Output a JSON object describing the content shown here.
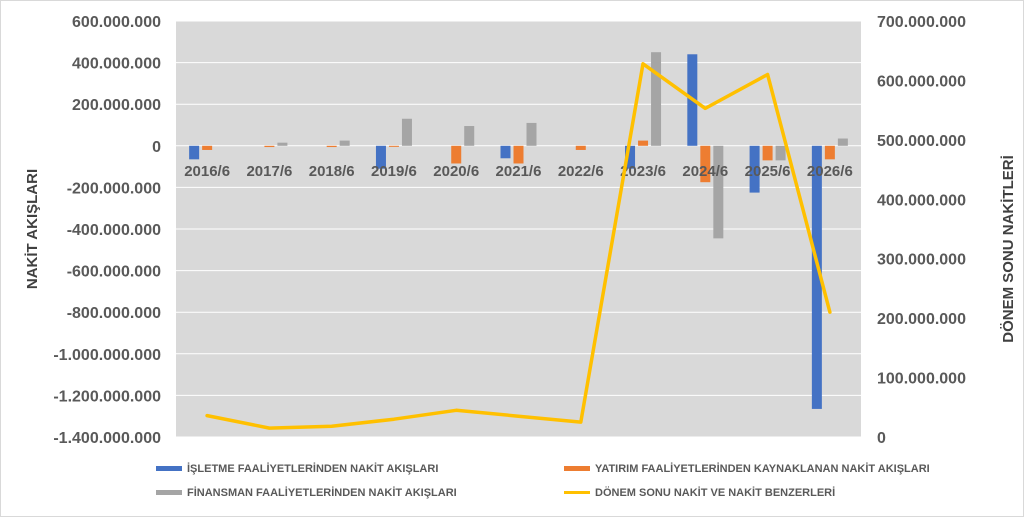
{
  "chart_data": {
    "type": "bar",
    "categories": [
      "2016/6",
      "2017/6",
      "2018/6",
      "2019/6",
      "2020/6",
      "2021/6",
      "2022/6",
      "2023/6",
      "2024/6",
      "2025/6",
      "2026/6"
    ],
    "y_left": {
      "label": "NAKİT AKIŞLARI",
      "range": [
        -1400000000,
        600000000
      ],
      "ticks": [
        600000000,
        400000000,
        200000000,
        0,
        -200000000,
        -400000000,
        -600000000,
        -800000000,
        -1000000000,
        -1200000000,
        -1400000000
      ],
      "tick_labels": [
        "600.000.000",
        "400.000.000",
        "200.000.000",
        "0",
        "-200.000.000",
        "-400.000.000",
        "-600.000.000",
        "-800.000.000",
        "-1.000.000.000",
        "-1.200.000.000",
        "-1.400.000.000"
      ]
    },
    "y_right": {
      "label": "DÖNEM SONU NAKİTLERİ",
      "range": [
        0,
        700000000
      ],
      "ticks": [
        700000000,
        600000000,
        500000000,
        400000000,
        300000000,
        200000000,
        100000000,
        0
      ],
      "tick_labels": [
        "700.000.000",
        "600.000.000",
        "500.000.000",
        "400.000.000",
        "300.000.000",
        "200.000.000",
        "100.000.000",
        "0"
      ]
    },
    "series": [
      {
        "name": "İŞLETME FAALİYETLERİNDEN NAKİT AKIŞLARI",
        "type": "bar",
        "axis": "left",
        "color": "#4472c4",
        "values": [
          -65000000,
          0,
          0,
          -110000000,
          0,
          -60000000,
          0,
          -110000000,
          440000000,
          -225000000,
          -1265000000
        ]
      },
      {
        "name": "YATIRIM FAALİYETLERİNDEN KAYNAKLANAN NAKİT AKIŞLARI",
        "type": "bar",
        "axis": "left",
        "color": "#ed7d31",
        "values": [
          -20000000,
          -6000000,
          -6000000,
          -5000000,
          -85000000,
          -85000000,
          -20000000,
          25000000,
          -175000000,
          -70000000,
          -65000000
        ]
      },
      {
        "name": "FİNANSMAN FAALİYETLERİNDEN NAKİT AKIŞLARI",
        "type": "bar",
        "axis": "left",
        "color": "#a5a5a5",
        "values": [
          0,
          15000000,
          25000000,
          130000000,
          95000000,
          110000000,
          0,
          450000000,
          -445000000,
          -70000000,
          35000000
        ]
      },
      {
        "name": "DÖNEM SONU NAKİT VE NAKİT BENZERLERİ",
        "type": "line",
        "axis": "right",
        "color": "#ffc000",
        "values": [
          36000000,
          15000000,
          18000000,
          30000000,
          45000000,
          35000000,
          25000000,
          628000000,
          553000000,
          610000000,
          210000000
        ]
      }
    ],
    "grid": true,
    "legend_position": "bottom"
  }
}
